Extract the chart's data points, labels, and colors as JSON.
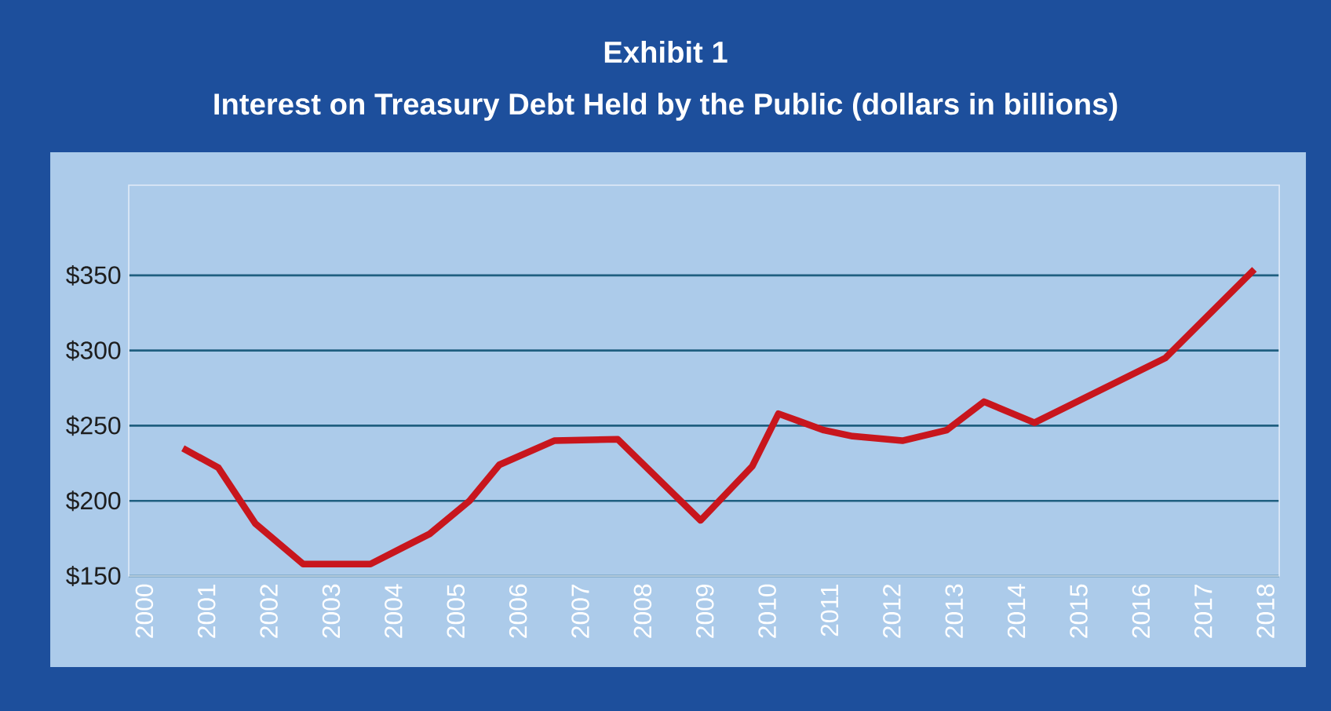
{
  "chart_data": {
    "type": "line",
    "title": "Exhibit 1",
    "subtitle": "Interest on Treasury Debt Held by the Public (dollars in billions)",
    "x": [
      2000.62,
      2001.19,
      2001.78,
      2002.55,
      2003.63,
      2004.58,
      2005.22,
      2005.7,
      2006.58,
      2007.6,
      2008.93,
      2009.76,
      2010.18,
      2010.91,
      2011.37,
      2012.17,
      2012.88,
      2013.48,
      2014.29,
      2016.39,
      2017.82
    ],
    "series": [
      {
        "color": "#c8161d",
        "values": [
          235,
          222,
          185,
          158,
          158,
          178,
          200,
          224,
          240,
          241,
          187,
          223,
          258,
          247,
          243,
          240,
          247,
          266,
          252,
          295,
          354
        ]
      }
    ],
    "xlim": [
      1999.75,
      2018.22
    ],
    "xticks": [
      2000,
      2001,
      2002,
      2003,
      2004,
      2005,
      2006,
      2007,
      2008,
      2009,
      2010,
      2011,
      2012,
      2013,
      2014,
      2015,
      2016,
      2017,
      2018
    ],
    "ylim": [
      150,
      410
    ],
    "yticks": [
      {
        "value": 150,
        "label": "$150"
      },
      {
        "value": 200,
        "label": "$200"
      },
      {
        "value": 250,
        "label": "$250"
      },
      {
        "value": 300,
        "label": "$300"
      },
      {
        "value": 350,
        "label": "$350"
      }
    ],
    "grid": "y",
    "marker": "none",
    "line_style": "solid"
  }
}
